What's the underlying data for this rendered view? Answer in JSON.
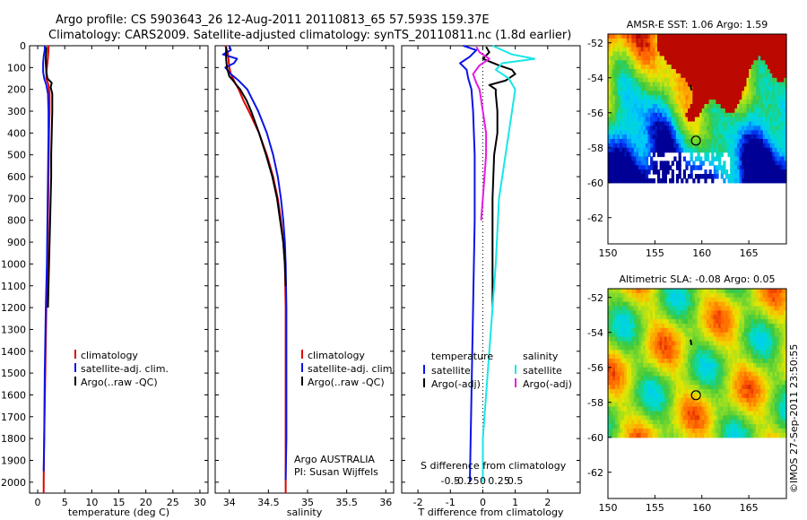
{
  "header": {
    "line1": "Argo profile: CS 5903643_26 12-Aug-2011 20110813_65 57.593S 159.37E",
    "line2": "Climatology: CARS2009. Satellite-adjusted climatology: synTS_20110811.nc (1.8d earlier)"
  },
  "stamp": "©IMOS 27-Sep-2011 23:50:55",
  "colors": {
    "climatology": "#e00000",
    "satellite": "#0a14e6",
    "argo": "#000000",
    "salinity_satellite": "#19e6e6",
    "salinity_argo": "#e619e6"
  },
  "y_axis": {
    "range": [
      0,
      2050
    ],
    "ticks": [
      0,
      100,
      200,
      300,
      400,
      500,
      600,
      700,
      800,
      900,
      1000,
      1100,
      1200,
      1300,
      1400,
      1500,
      1600,
      1700,
      1800,
      1900,
      2000
    ],
    "direction": "reversed"
  },
  "chart_data": [
    {
      "type": "line",
      "xlabel": "temperature (deg C)",
      "xlim": [
        -1.5,
        31.5
      ],
      "xticks": [
        0,
        5,
        10,
        15,
        20,
        25,
        30
      ],
      "legend": [
        "climatology",
        "satellite-adj. clim.",
        "Argo(..raw -QC)"
      ],
      "series": [
        {
          "name": "climatology",
          "color": "#e00000",
          "depth": [
            0,
            20,
            50,
            80,
            120,
            150,
            180,
            220,
            300,
            400,
            600,
            800,
            1000,
            1200,
            1500,
            1800,
            2000,
            2050
          ],
          "x": [
            2.0,
            2.0,
            1.9,
            1.8,
            1.6,
            1.6,
            2.0,
            2.2,
            2.2,
            2.1,
            2.0,
            1.9,
            1.8,
            1.6,
            1.4,
            1.2,
            1.1,
            1.1
          ]
        },
        {
          "name": "satellite-adj. clim.",
          "color": "#0a14e6",
          "depth": [
            0,
            20,
            50,
            80,
            120,
            150,
            180,
            220,
            300,
            400,
            600,
            800,
            1000,
            1200,
            1500,
            1800,
            1950
          ],
          "x": [
            1.3,
            1.3,
            1.1,
            1.0,
            1.0,
            1.2,
            1.6,
            1.9,
            2.0,
            2.0,
            1.9,
            1.8,
            1.7,
            1.5,
            1.3,
            1.2,
            1.1
          ]
        },
        {
          "name": "Argo(..raw -QC)",
          "color": "#000000",
          "depth": [
            5,
            20,
            50,
            80,
            120,
            150,
            170,
            190,
            220,
            300,
            400,
            500,
            600,
            800,
            1000,
            1200
          ],
          "x": [
            1.6,
            1.6,
            1.5,
            1.5,
            1.6,
            1.8,
            2.6,
            2.4,
            2.7,
            2.7,
            2.6,
            2.5,
            2.5,
            2.3,
            2.1,
            1.9
          ]
        }
      ]
    },
    {
      "type": "line",
      "xlabel": "salinity",
      "xlim": [
        33.82,
        36.1
      ],
      "xticks": [
        34,
        34.5,
        35,
        35.5,
        36
      ],
      "xtick_labels": [
        "34",
        "34.5",
        "35",
        "35.5",
        "36"
      ],
      "legend": [
        "climatology",
        "satellite-adj. clim.",
        "Argo(..raw -QC)"
      ],
      "annotations": [
        "Argo AUSTRALIA",
        "PI: Susan Wijffels"
      ],
      "series": [
        {
          "name": "climatology",
          "color": "#e00000",
          "depth": [
            0,
            30,
            60,
            100,
            130,
            160,
            200,
            250,
            300,
            400,
            500,
            600,
            700,
            800,
            900,
            1000,
            1200,
            1500,
            1800,
            2050
          ],
          "x": [
            33.95,
            33.98,
            33.99,
            34.0,
            34.02,
            34.06,
            34.12,
            34.18,
            34.25,
            34.38,
            34.48,
            34.56,
            34.62,
            34.66,
            34.69,
            34.71,
            34.72,
            34.72,
            34.72,
            34.72
          ]
        },
        {
          "name": "satellite-adj. clim.",
          "color": "#0a14e6",
          "depth": [
            0,
            20,
            40,
            60,
            80,
            100,
            130,
            160,
            200,
            250,
            300,
            400,
            500,
            600,
            700,
            800,
            900,
            1000,
            1200,
            1500,
            1800,
            1990
          ],
          "x": [
            34.0,
            34.02,
            33.92,
            34.1,
            34.06,
            33.95,
            34.02,
            34.12,
            34.23,
            34.3,
            34.37,
            34.48,
            34.56,
            34.62,
            34.66,
            34.69,
            34.71,
            34.72,
            34.73,
            34.73,
            34.73,
            34.72
          ]
        },
        {
          "name": "Argo(..raw -QC)",
          "color": "#000000",
          "depth": [
            5,
            30,
            60,
            100,
            140,
            160,
            180,
            200,
            250,
            300,
            400,
            500,
            600,
            700,
            800,
            900,
            1000,
            1100
          ],
          "x": [
            33.96,
            33.96,
            33.96,
            33.97,
            34.0,
            34.05,
            34.09,
            34.14,
            34.22,
            34.28,
            34.38,
            34.47,
            34.55,
            34.61,
            34.65,
            34.69,
            34.71,
            34.72
          ]
        }
      ]
    },
    {
      "type": "line",
      "xlabel": "T difference from climatology",
      "xlabel_top": "S difference from climatology",
      "xlim": [
        -2.5,
        3.0
      ],
      "xticks": [
        -2,
        -1,
        0,
        1,
        2
      ],
      "xticks_top": [
        -0.5,
        -0.25,
        0,
        0.25,
        0.5
      ],
      "xticks_top_labels": [
        "-0.5",
        "-0.25",
        "0",
        "0.25",
        "0.5"
      ],
      "legend_temperature": {
        "title": "temperature",
        "items": [
          "satellite",
          "Argo(-adj)"
        ]
      },
      "legend_salinity": {
        "title": "salinity",
        "items": [
          "satellite",
          "Argo(-adj)"
        ]
      },
      "series": [
        {
          "name": "temperature satellite",
          "color": "#0a14e6",
          "depth": [
            0,
            20,
            50,
            80,
            110,
            150,
            200,
            300,
            500,
            800,
            1200,
            1600,
            2000
          ],
          "x": [
            -0.6,
            -0.2,
            -0.4,
            -0.7,
            -0.5,
            -0.45,
            -0.35,
            -0.3,
            -0.25,
            -0.25,
            -0.3,
            -0.35,
            -0.4
          ]
        },
        {
          "name": "temperature Argo(-adj)",
          "color": "#000000",
          "depth": [
            5,
            30,
            60,
            90,
            110,
            130,
            160,
            180,
            200,
            220,
            300,
            400,
            500,
            700,
            900,
            1200
          ],
          "x": [
            0.1,
            0.2,
            0.0,
            0.5,
            0.9,
            1.0,
            0.7,
            0.2,
            0.4,
            0.4,
            0.45,
            0.45,
            0.35,
            0.3,
            0.3,
            0.3
          ]
        },
        {
          "name": "salinity satellite",
          "color": "#19e6e6",
          "depth": [
            0,
            20,
            40,
            60,
            80,
            110,
            150,
            200,
            300,
            400,
            500,
            700,
            1000,
            1400,
            1800,
            2000
          ],
          "x": [
            0.3,
            0.6,
            0.9,
            1.6,
            0.6,
            0.4,
            0.8,
            1.0,
            0.9,
            0.8,
            0.7,
            0.5,
            0.4,
            0.2,
            0.0,
            0.0
          ]
        },
        {
          "name": "salinity Argo(-adj)",
          "color": "#e619e6",
          "depth": [
            5,
            30,
            60,
            90,
            130,
            170,
            200,
            300,
            400,
            500,
            600,
            700,
            800
          ],
          "x": [
            -0.2,
            -0.1,
            0.2,
            -0.1,
            -0.3,
            -0.2,
            -0.1,
            0.0,
            0.1,
            0.1,
            0.05,
            0.0,
            -0.05
          ]
        }
      ]
    },
    {
      "type": "heatmap",
      "title": "AMSR-E SST: 1.06 Argo: 1.59",
      "xlim": [
        150,
        169
      ],
      "ylim": [
        -63.5,
        -51.5
      ],
      "xticks": [
        150,
        155,
        160,
        165
      ],
      "yticks": [
        -52,
        -54,
        -56,
        -58,
        -60,
        -62
      ],
      "profile": {
        "lon": 159.37,
        "lat": -57.593
      }
    },
    {
      "type": "heatmap",
      "title": "Altimetric SLA: -0.08 Argo: 0.05",
      "xlim": [
        150,
        169
      ],
      "ylim": [
        -63.5,
        -51.5
      ],
      "xticks": [
        150,
        155,
        160,
        165
      ],
      "yticks": [
        -52,
        -54,
        -56,
        -58,
        -60,
        -62
      ],
      "profile": {
        "lon": 159.37,
        "lat": -57.593
      }
    }
  ]
}
